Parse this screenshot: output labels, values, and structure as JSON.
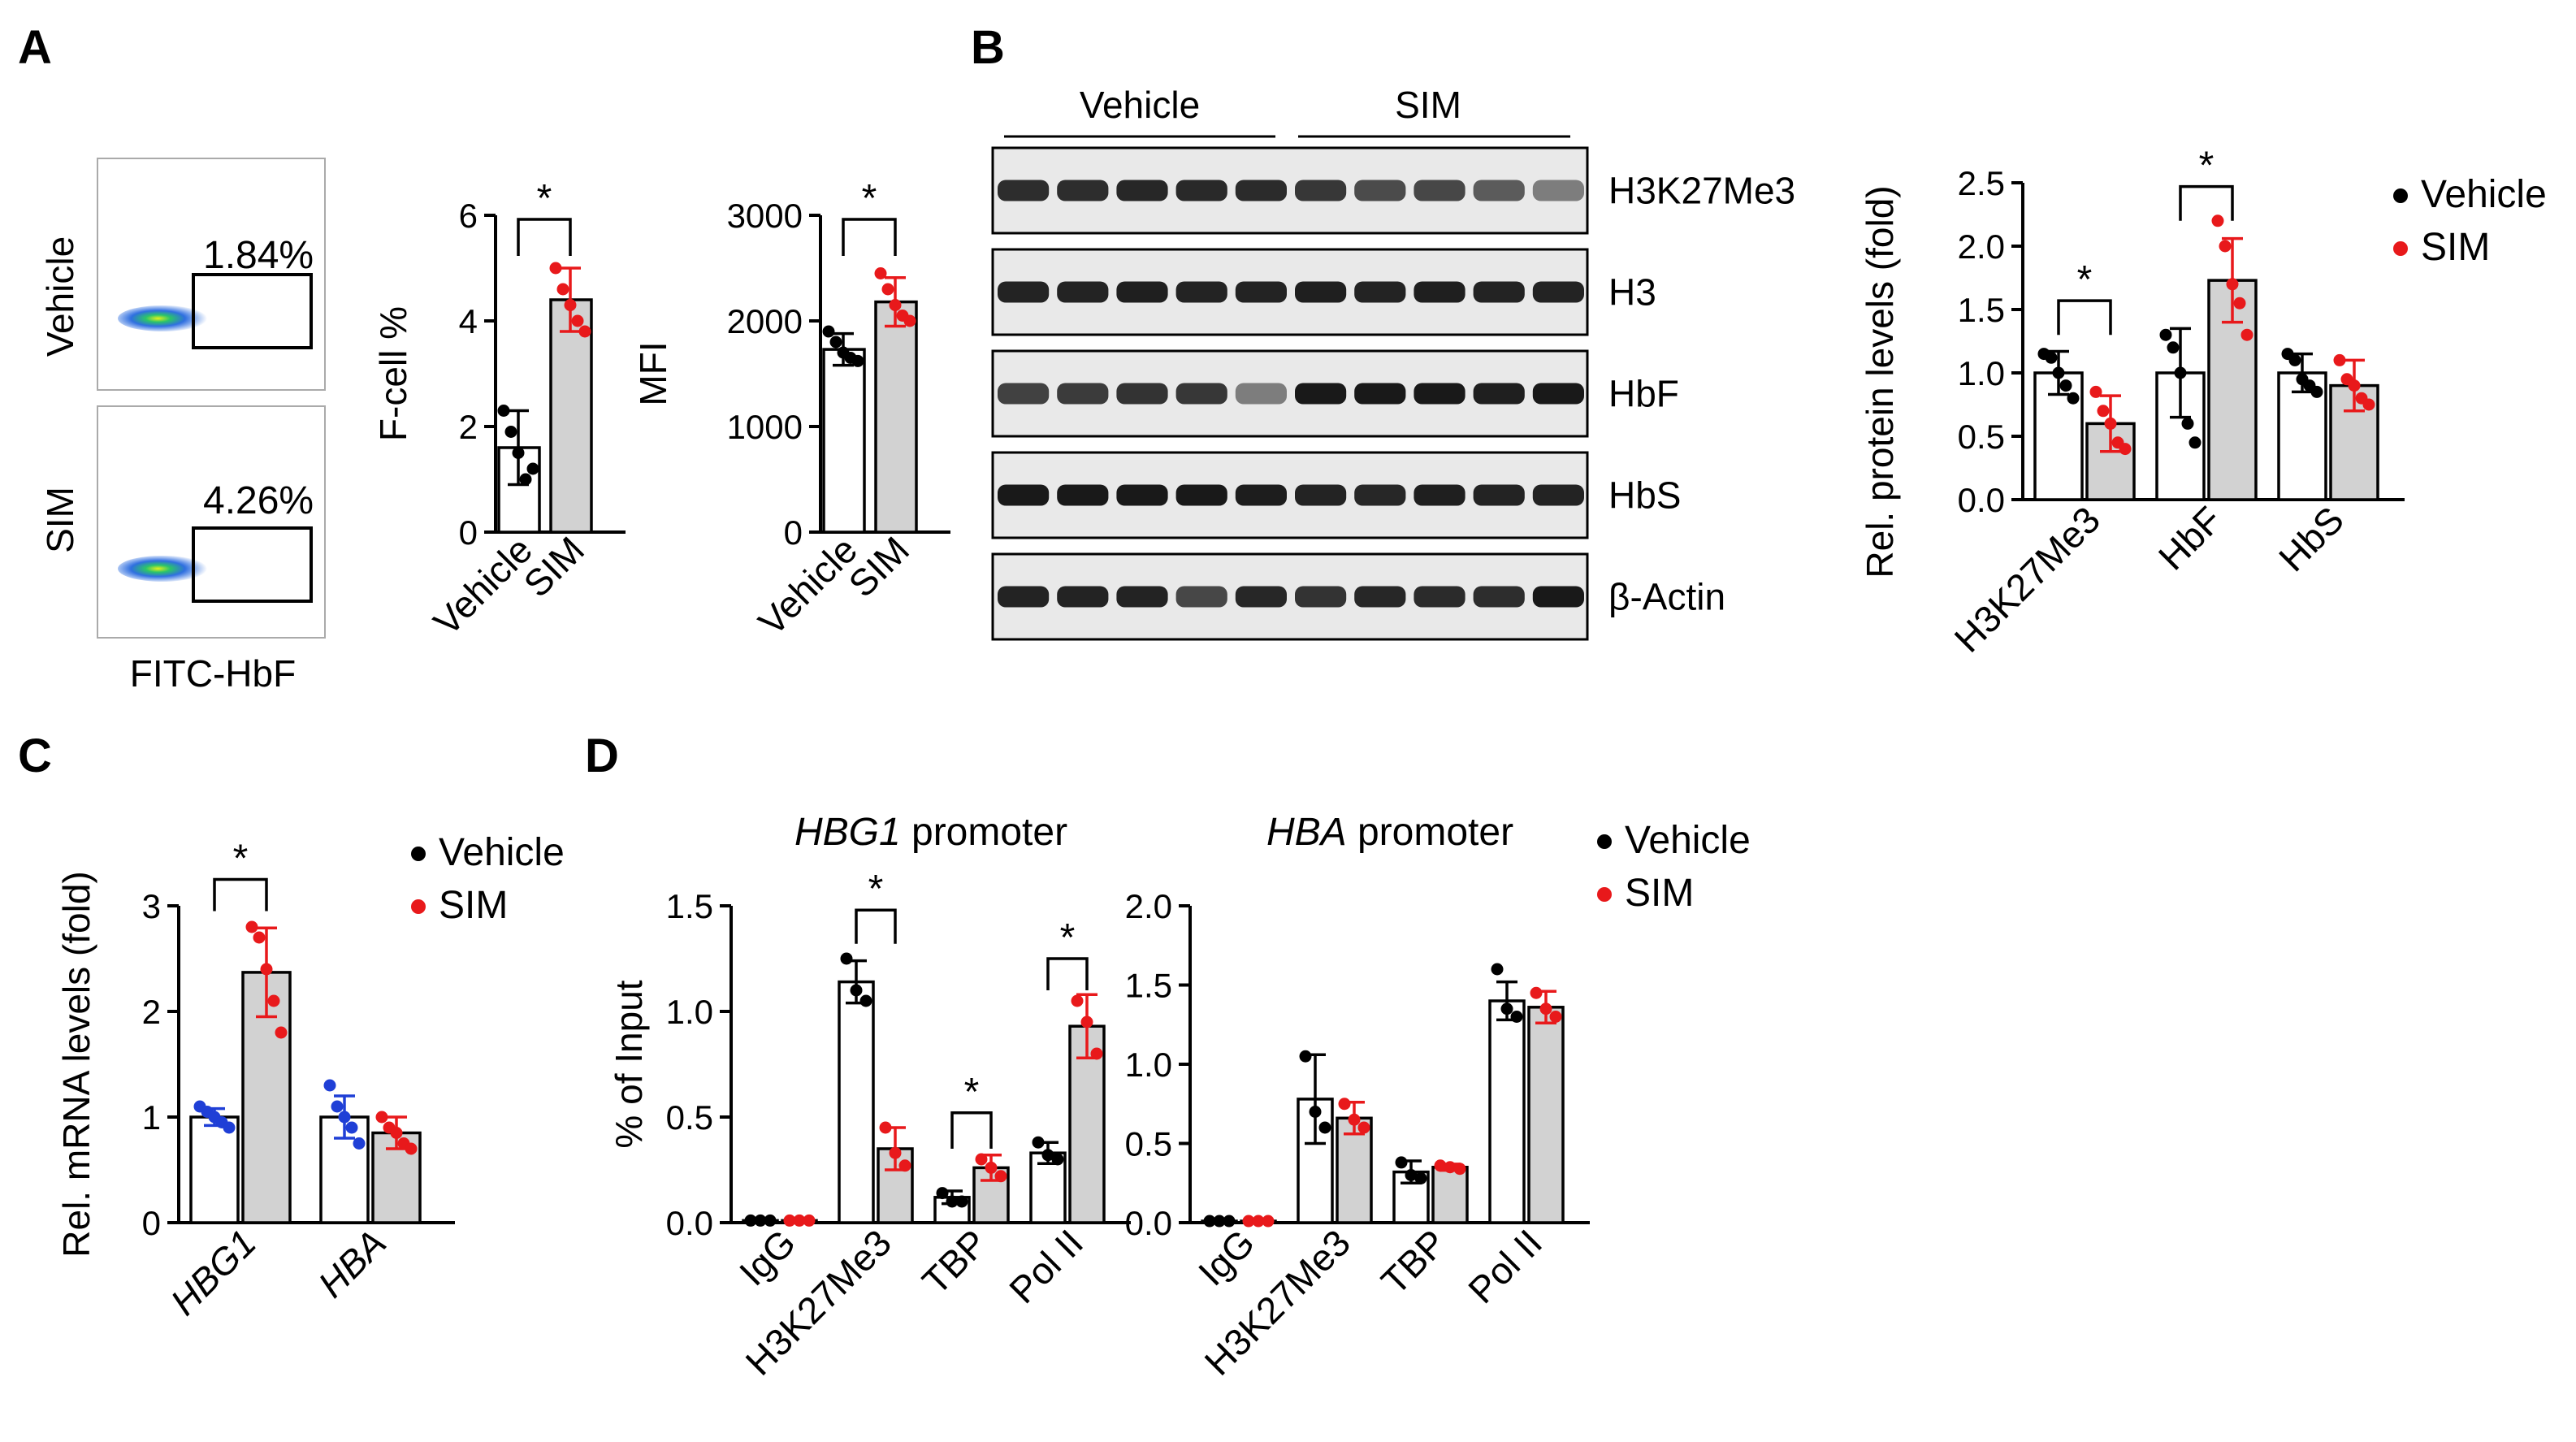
{
  "colors": {
    "vehicle": "#000000",
    "sim": "#e8191b",
    "blue": "#1f3fd6",
    "grey_bar": "#d2d2d2"
  },
  "panels": {
    "A": "A",
    "B": "B",
    "C": "C",
    "D": "D"
  },
  "flow": {
    "rows": [
      {
        "label": "Vehicle",
        "percent": "1.84%"
      },
      {
        "label": "SIM",
        "percent": "4.26%"
      }
    ],
    "xlabel": "FITC-HbF"
  },
  "sig": "*",
  "chart_data": [
    {
      "id": "fcell",
      "type": "bar",
      "title": "",
      "ylabel": "F-cell %",
      "xlabel": "",
      "ylim": [
        0,
        6
      ],
      "yticks": [
        "0",
        "2",
        "4",
        "6"
      ],
      "categories": [
        "Vehicle",
        "SIM"
      ],
      "values": [
        1.6,
        4.4
      ],
      "errors": [
        0.7,
        0.6
      ],
      "points": [
        [
          2.3,
          1.9,
          1.5,
          1.0,
          1.2
        ],
        [
          5.0,
          4.6,
          4.3,
          4.0,
          3.8
        ]
      ]
    },
    {
      "id": "mfi",
      "type": "bar",
      "title": "",
      "ylabel": "MFI",
      "xlabel": "",
      "ylim": [
        0,
        3000
      ],
      "yticks": [
        "0",
        "1000",
        "2000",
        "3000"
      ],
      "categories": [
        "Vehicle",
        "SIM"
      ],
      "values": [
        1730,
        2180
      ],
      "errors": [
        150,
        230
      ],
      "points": [
        [
          1900,
          1800,
          1700,
          1650,
          1620
        ],
        [
          2450,
          2300,
          2150,
          2050,
          2000
        ]
      ]
    },
    {
      "id": "protein",
      "type": "bar",
      "title": "",
      "ylabel": "Rel. protein levels (fold)",
      "xlabel": "",
      "ylim": [
        0,
        2.5
      ],
      "yticks": [
        "0.0",
        "0.5",
        "1.0",
        "1.5",
        "2.0",
        "2.5"
      ],
      "categories": [
        "H3K27Me3",
        "HbF",
        "HbS"
      ],
      "legend": [
        "Vehicle",
        "SIM"
      ],
      "series": [
        {
          "values": [
            1.0,
            1.0,
            1.0
          ],
          "errors": [
            0.17,
            0.35,
            0.15
          ],
          "points": [
            [
              1.15,
              1.12,
              1.0,
              0.9,
              0.8
            ],
            [
              1.3,
              1.2,
              1.0,
              0.6,
              0.45
            ],
            [
              1.15,
              1.1,
              0.95,
              0.9,
              0.85
            ]
          ]
        },
        {
          "values": [
            0.6,
            1.73,
            0.9
          ],
          "errors": [
            0.22,
            0.33,
            0.2
          ],
          "points": [
            [
              0.85,
              0.7,
              0.6,
              0.45,
              0.4
            ],
            [
              2.2,
              2.0,
              1.7,
              1.55,
              1.3
            ],
            [
              1.1,
              0.95,
              0.9,
              0.8,
              0.75
            ]
          ]
        }
      ]
    },
    {
      "id": "mrna",
      "type": "bar",
      "title": "",
      "ylabel": "Rel. mRNA levels (fold)",
      "xlabel": "",
      "ylim": [
        0,
        3
      ],
      "yticks": [
        "0",
        "1",
        "2",
        "3"
      ],
      "categories": [
        "HBG1",
        "HBA"
      ],
      "legend": [
        "Vehicle",
        "SIM"
      ],
      "series": [
        {
          "values": [
            1.0,
            1.0
          ],
          "errors": [
            0.08,
            0.2
          ],
          "points": [
            [
              1.1,
              1.05,
              1.0,
              0.95,
              0.9
            ],
            [
              1.3,
              1.1,
              1.0,
              0.9,
              0.75
            ]
          ]
        },
        {
          "values": [
            2.37,
            0.85
          ],
          "errors": [
            0.42,
            0.15
          ],
          "points": [
            [
              2.8,
              2.7,
              2.4,
              2.1,
              1.8
            ],
            [
              1.0,
              0.9,
              0.85,
              0.75,
              0.7
            ]
          ]
        }
      ]
    },
    {
      "id": "hbg1",
      "type": "bar",
      "title": "HBG1",
      "title_suffix": " promoter",
      "ylabel": "% of Input",
      "xlabel": "",
      "ylim": [
        0,
        1.5
      ],
      "yticks": [
        "0.0",
        "0.5",
        "1.0",
        "1.5"
      ],
      "categories": [
        "IgG",
        "H3K27Me3",
        "TBP",
        "Pol II"
      ],
      "legend": [
        "Vehicle",
        "SIM"
      ],
      "series": [
        {
          "values": [
            0.01,
            1.14,
            0.12,
            0.33
          ],
          "errors": [
            0.005,
            0.1,
            0.03,
            0.05
          ],
          "points": [
            [
              0.01,
              0.01,
              0.01
            ],
            [
              1.25,
              1.1,
              1.05
            ],
            [
              0.14,
              0.1,
              0.1
            ],
            [
              0.38,
              0.32,
              0.3
            ]
          ]
        },
        {
          "values": [
            0.01,
            0.35,
            0.26,
            0.93
          ],
          "errors": [
            0.005,
            0.1,
            0.06,
            0.15
          ],
          "points": [
            [
              0.01,
              0.01,
              0.01
            ],
            [
              0.45,
              0.33,
              0.27
            ],
            [
              0.3,
              0.26,
              0.22
            ],
            [
              1.05,
              0.95,
              0.8
            ]
          ]
        }
      ]
    },
    {
      "id": "hba",
      "type": "bar",
      "title": "HBA",
      "title_suffix": " promoter",
      "ylabel": "",
      "xlabel": "",
      "ylim": [
        0,
        2.0
      ],
      "yticks": [
        "0.0",
        "0.5",
        "1.0",
        "1.5",
        "2.0"
      ],
      "categories": [
        "IgG",
        "H3K27Me3",
        "TBP",
        "Pol II"
      ],
      "legend": [
        "Vehicle",
        "SIM"
      ],
      "series": [
        {
          "values": [
            0.01,
            0.78,
            0.32,
            1.4
          ],
          "errors": [
            0.005,
            0.28,
            0.07,
            0.12
          ],
          "points": [
            [
              0.01,
              0.01,
              0.01
            ],
            [
              1.05,
              0.7,
              0.6
            ],
            [
              0.38,
              0.3,
              0.28
            ],
            [
              1.6,
              1.35,
              1.3
            ]
          ]
        },
        {
          "values": [
            0.01,
            0.66,
            0.35,
            1.36
          ],
          "errors": [
            0.005,
            0.1,
            0.02,
            0.1
          ],
          "points": [
            [
              0.01,
              0.01,
              0.01
            ],
            [
              0.75,
              0.65,
              0.6
            ],
            [
              0.36,
              0.35,
              0.34
            ],
            [
              1.45,
              1.35,
              1.3
            ]
          ]
        }
      ]
    }
  ],
  "blot": {
    "groups": [
      "Vehicle",
      "SIM"
    ],
    "lanes": 10,
    "bands": [
      {
        "label": "H3K27Me3",
        "intensity": [
          0.85,
          0.85,
          0.88,
          0.87,
          0.86,
          0.8,
          0.7,
          0.72,
          0.62,
          0.45
        ]
      },
      {
        "label": "H3",
        "intensity": [
          0.9,
          0.9,
          0.92,
          0.9,
          0.9,
          0.92,
          0.9,
          0.92,
          0.9,
          0.9
        ]
      },
      {
        "label": "HbF",
        "intensity": [
          0.75,
          0.78,
          0.82,
          0.8,
          0.45,
          0.95,
          0.95,
          0.95,
          0.92,
          0.95
        ]
      },
      {
        "label": "HbS",
        "intensity": [
          0.95,
          0.95,
          0.95,
          0.95,
          0.93,
          0.9,
          0.88,
          0.92,
          0.9,
          0.9
        ]
      },
      {
        "label": "β-Actin",
        "intensity": [
          0.9,
          0.9,
          0.9,
          0.72,
          0.88,
          0.82,
          0.88,
          0.86,
          0.85,
          0.95
        ]
      }
    ]
  }
}
